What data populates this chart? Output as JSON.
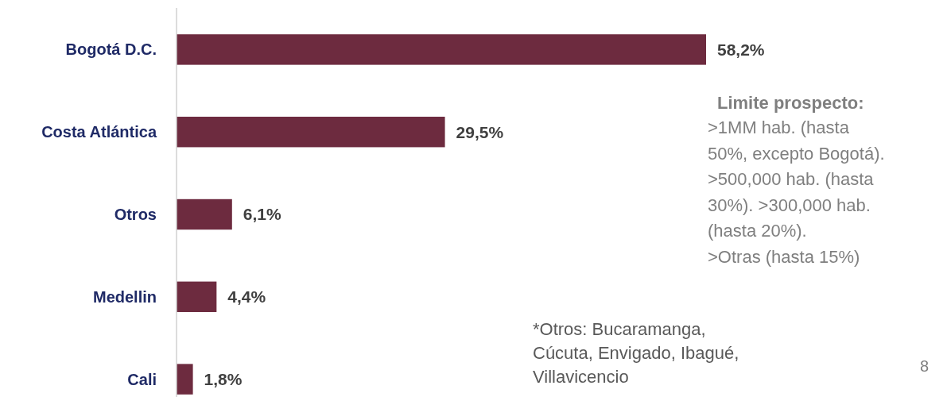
{
  "chart_data": {
    "type": "bar",
    "orientation": "horizontal",
    "categories": [
      "Bogotá D.C.",
      "Costa Atlántica",
      "Otros",
      "Medellin",
      "Cali"
    ],
    "values": [
      58.2,
      29.5,
      6.1,
      4.4,
      1.8
    ],
    "value_labels": [
      "58,2%",
      "29,5%",
      "6,1%",
      "4,4%",
      "1,8%"
    ],
    "color": "#6d2b3f",
    "annotations": [
      "Limite prospecto:",
      ">1MM hab. (hasta\n50%, excepto Bogotá).\n>500,000 hab. (hasta\n30%). >300,000 hab.\n(hasta 20%).\n>Otras (hasta 15%)",
      "*Otros: Bucaramanga,\nCúcuta, Envigado, Ibagué,\nVillavicencio",
      "8"
    ]
  }
}
